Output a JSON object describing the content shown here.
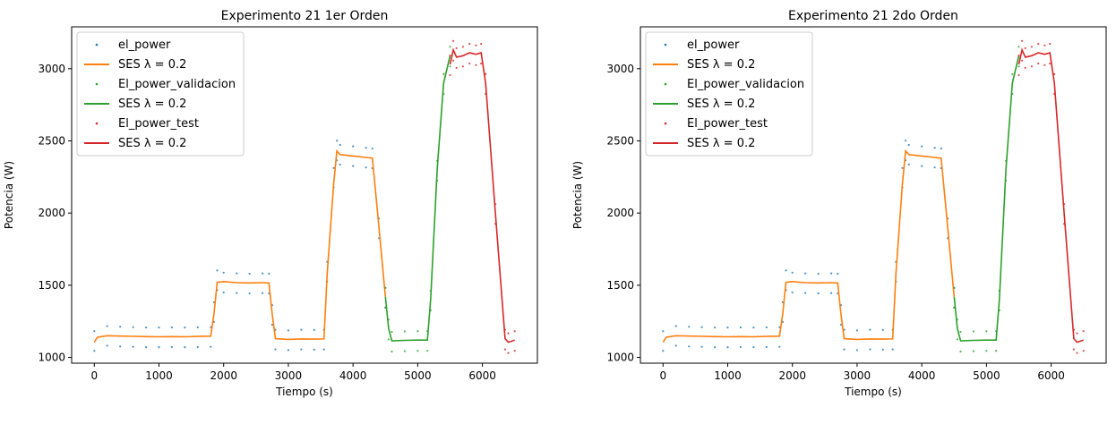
{
  "chart_data": [
    {
      "type": "line",
      "title": "Experimento 21 1er Orden",
      "xlabel": "Tiempo (s)",
      "ylabel": "Potencia (W)",
      "xlim": [
        -350,
        6850
      ],
      "ylim": [
        960,
        3290
      ],
      "xticks": [
        0,
        1000,
        2000,
        3000,
        4000,
        5000,
        6000
      ],
      "yticks": [
        1000,
        1500,
        2000,
        2500,
        3000
      ],
      "legend_position": "top-left",
      "series": [
        {
          "name": "el_power",
          "style": "points",
          "color": "#1f77b4",
          "x": [
            0,
            200,
            400,
            600,
            800,
            1000,
            1200,
            1400,
            1600,
            1800,
            1850,
            1900,
            2000,
            2200,
            2400,
            2600,
            2700,
            2750,
            2800,
            3000,
            3200,
            3400,
            3550,
            3600,
            3700,
            3750,
            3800,
            4000,
            4200,
            4300,
            4400,
            4500
          ],
          "y": [
            1120,
            1155,
            1150,
            1148,
            1145,
            1145,
            1146,
            1145,
            1146,
            1148,
            1320,
            1540,
            1525,
            1520,
            1518,
            1520,
            1518,
            1300,
            1130,
            1125,
            1130,
            1128,
            1130,
            1600,
            2250,
            2440,
            2410,
            2400,
            2390,
            2385,
            1900,
            1420
          ]
        },
        {
          "name": "SES λ = 0.2",
          "style": "line",
          "color": "#ff7f0e",
          "x": [
            0,
            50,
            200,
            400,
            600,
            800,
            1000,
            1200,
            1400,
            1600,
            1800,
            1850,
            1900,
            2000,
            2200,
            2400,
            2600,
            2700,
            2750,
            2800,
            3000,
            3200,
            3400,
            3550,
            3600,
            3700,
            3750,
            3800,
            4000,
            4200,
            4300,
            4400,
            4500
          ],
          "y": [
            1105,
            1140,
            1150,
            1148,
            1146,
            1144,
            1143,
            1144,
            1143,
            1145,
            1147,
            1300,
            1520,
            1525,
            1518,
            1516,
            1518,
            1515,
            1300,
            1130,
            1125,
            1128,
            1127,
            1128,
            1580,
            2200,
            2430,
            2405,
            2395,
            2385,
            2380,
            1900,
            1420
          ]
        },
        {
          "name": "El_power_validacion",
          "style": "points",
          "color": "#2ca02c",
          "x": [
            4500,
            4550,
            4600,
            4800,
            5000,
            5150,
            5200,
            5300,
            5400,
            5500
          ],
          "y": [
            1420,
            1200,
            1115,
            1118,
            1120,
            1120,
            1400,
            2300,
            2900,
            3090
          ]
        },
        {
          "name": "SES λ = 0.2",
          "style": "line",
          "color": "#2ca02c",
          "x": [
            4500,
            4550,
            4600,
            4800,
            5000,
            5150,
            5200,
            5300,
            5400,
            5500
          ],
          "y": [
            1420,
            1200,
            1115,
            1118,
            1120,
            1120,
            1400,
            2300,
            2900,
            3090
          ]
        },
        {
          "name": "El_power_test",
          "style": "points",
          "color": "#d62728",
          "x": [
            5500,
            5550,
            5600,
            5700,
            5800,
            5900,
            5980,
            6050,
            6200,
            6350,
            6400,
            6500
          ],
          "y": [
            3030,
            3130,
            3080,
            3090,
            3110,
            3100,
            3110,
            2900,
            2000,
            1130,
            1105,
            1120
          ]
        },
        {
          "name": "SES λ = 0.2",
          "style": "line",
          "color": "#d62728",
          "x": [
            5500,
            5550,
            5600,
            5700,
            5800,
            5900,
            5980,
            6050,
            6200,
            6350,
            6400,
            6500
          ],
          "y": [
            3030,
            3130,
            3080,
            3090,
            3110,
            3100,
            3110,
            2900,
            2000,
            1130,
            1105,
            1120
          ]
        }
      ]
    },
    {
      "type": "line",
      "title": "Experimento 21 2do Orden",
      "xlabel": "Tiempo (s)",
      "ylabel": "Potencia (W)",
      "xlim": [
        -350,
        6850
      ],
      "ylim": [
        960,
        3290
      ],
      "xticks": [
        0,
        1000,
        2000,
        3000,
        4000,
        5000,
        6000
      ],
      "yticks": [
        1000,
        1500,
        2000,
        2500,
        3000
      ],
      "legend_position": "top-left",
      "series": [
        {
          "name": "el_power",
          "style": "points",
          "color": "#1f77b4",
          "x": [
            0,
            200,
            400,
            600,
            800,
            1000,
            1200,
            1400,
            1600,
            1800,
            1850,
            1900,
            2000,
            2200,
            2400,
            2600,
            2700,
            2750,
            2800,
            3000,
            3200,
            3400,
            3550,
            3600,
            3700,
            3750,
            3800,
            4000,
            4200,
            4300,
            4400,
            4500
          ],
          "y": [
            1120,
            1155,
            1150,
            1148,
            1145,
            1145,
            1146,
            1145,
            1146,
            1148,
            1320,
            1540,
            1525,
            1520,
            1518,
            1520,
            1518,
            1300,
            1130,
            1125,
            1130,
            1128,
            1130,
            1600,
            2250,
            2440,
            2410,
            2400,
            2390,
            2385,
            1900,
            1420
          ]
        },
        {
          "name": "SES λ = 0.2",
          "style": "line",
          "color": "#ff7f0e",
          "x": [
            0,
            50,
            200,
            400,
            600,
            800,
            1000,
            1200,
            1400,
            1600,
            1800,
            1850,
            1900,
            2000,
            2200,
            2400,
            2600,
            2700,
            2750,
            2800,
            3000,
            3200,
            3400,
            3550,
            3600,
            3700,
            3750,
            3800,
            4000,
            4200,
            4300,
            4400,
            4500
          ],
          "y": [
            1105,
            1140,
            1150,
            1148,
            1146,
            1144,
            1143,
            1144,
            1143,
            1145,
            1147,
            1300,
            1520,
            1525,
            1518,
            1516,
            1518,
            1515,
            1300,
            1130,
            1125,
            1128,
            1127,
            1128,
            1580,
            2200,
            2430,
            2405,
            2395,
            2385,
            2380,
            1900,
            1420
          ]
        },
        {
          "name": "El_power_validacion",
          "style": "points",
          "color": "#2ca02c",
          "x": [
            4500,
            4550,
            4600,
            4800,
            5000,
            5150,
            5200,
            5300,
            5400,
            5500
          ],
          "y": [
            1420,
            1200,
            1115,
            1118,
            1120,
            1120,
            1400,
            2300,
            2900,
            3090
          ]
        },
        {
          "name": "SES λ = 0.2",
          "style": "line",
          "color": "#2ca02c",
          "x": [
            4500,
            4550,
            4600,
            4800,
            5000,
            5150,
            5200,
            5300,
            5400,
            5500
          ],
          "y": [
            1420,
            1200,
            1115,
            1118,
            1120,
            1120,
            1400,
            2300,
            2900,
            3090
          ]
        },
        {
          "name": "El_power_test",
          "style": "points",
          "color": "#d62728",
          "x": [
            5500,
            5550,
            5600,
            5700,
            5800,
            5900,
            5980,
            6050,
            6200,
            6350,
            6400,
            6500
          ],
          "y": [
            3030,
            3130,
            3080,
            3090,
            3110,
            3100,
            3110,
            2900,
            2000,
            1130,
            1105,
            1120
          ]
        },
        {
          "name": "SES λ = 0.2",
          "style": "line",
          "color": "#d62728",
          "x": [
            5500,
            5550,
            5600,
            5700,
            5800,
            5900,
            5980,
            6050,
            6200,
            6350,
            6400,
            6500
          ],
          "y": [
            3030,
            3130,
            3080,
            3090,
            3110,
            3100,
            3110,
            2900,
            2000,
            1130,
            1105,
            1120
          ]
        }
      ]
    }
  ]
}
